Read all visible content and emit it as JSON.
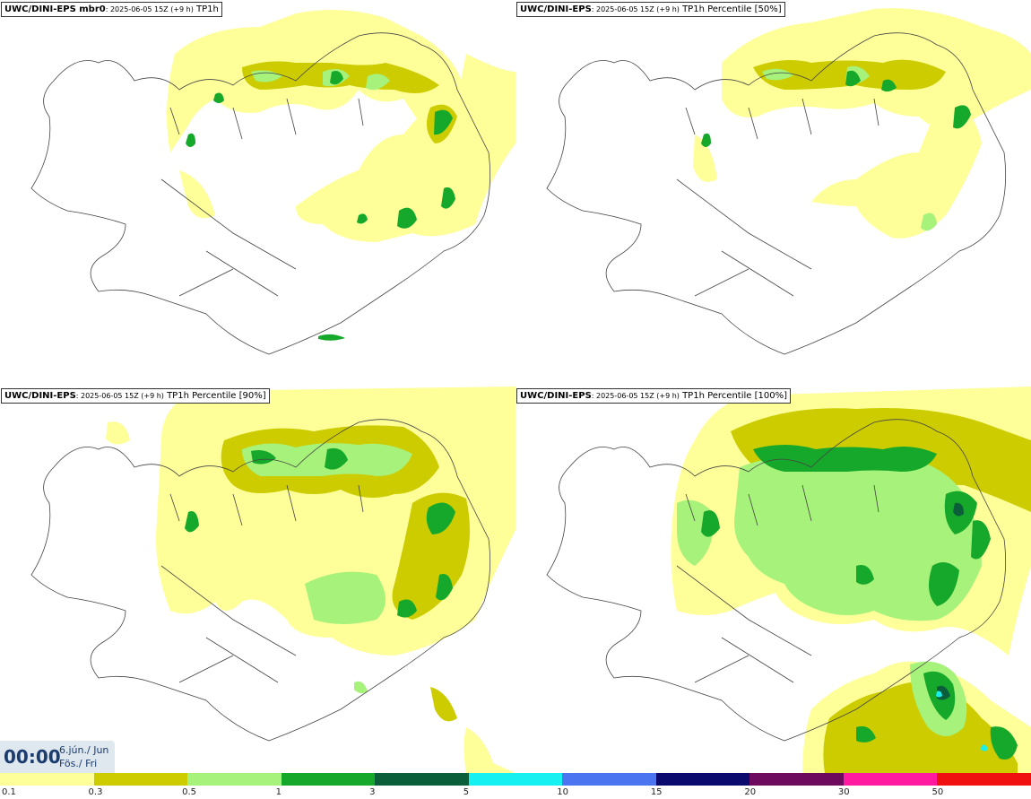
{
  "panels": [
    {
      "model": "UWC/DINI-EPS mbr0",
      "run": ": 2025-06-05 15Z (+9 h)",
      "field": " TP1h"
    },
    {
      "model": "UWC/DINI-EPS",
      "run": ": 2025-06-05 15Z (+9 h)",
      "field": " TP1h Percentile [50%]"
    },
    {
      "model": "UWC/DINI-EPS",
      "run": ": 2025-06-05 15Z (+9 h)",
      "field": " TP1h Percentile [90%]"
    },
    {
      "model": "UWC/DINI-EPS",
      "run": ": 2025-06-05 15Z (+9 h)",
      "field": " TP1h Percentile [100%]"
    }
  ],
  "time": {
    "clock": "00:00",
    "date": "6.jún./ Jun",
    "day": "Fös./ Fri"
  },
  "legend": [
    {
      "label": "0.1",
      "color": "#ffff9a"
    },
    {
      "label": "0.3",
      "color": "#cccc00"
    },
    {
      "label": "0.5",
      "color": "#a6f27a"
    },
    {
      "label": "1",
      "color": "#16a82a"
    },
    {
      "label": "3",
      "color": "#0b5e3a"
    },
    {
      "label": "5",
      "color": "#16f0f0"
    },
    {
      "label": "10",
      "color": "#4a74f0"
    },
    {
      "label": "15",
      "color": "#0a0a6e"
    },
    {
      "label": "20",
      "color": "#6e0a5e"
    },
    {
      "label": "30",
      "color": "#ff1aa0"
    },
    {
      "label": "50",
      "color": "#f01010"
    }
  ]
}
